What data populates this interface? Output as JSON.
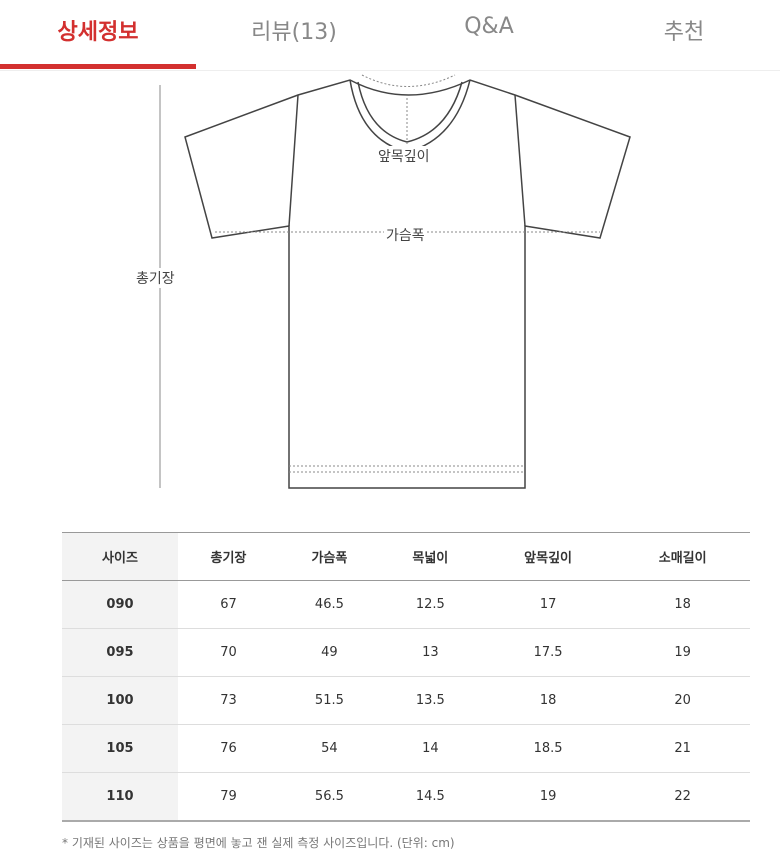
{
  "tabs": [
    {
      "label": "상세정보",
      "active": true
    },
    {
      "label": "리뷰(13)"
    },
    {
      "label": "Q&A"
    },
    {
      "label": "추천"
    }
  ],
  "accent_color": "#d3302f",
  "diagram": {
    "labels": {
      "front_neck_depth": "앞목깊이",
      "chest_width": "가슴폭",
      "total_length": "총기장"
    }
  },
  "size_table": {
    "headers": [
      "사이즈",
      "총기장",
      "가슴폭",
      "목넓이",
      "앞목깊이",
      "소매길이"
    ],
    "rows": [
      [
        "090",
        "67",
        "46.5",
        "12.5",
        "17",
        "18"
      ],
      [
        "095",
        "70",
        "49",
        "13",
        "17.5",
        "19"
      ],
      [
        "100",
        "73",
        "51.5",
        "13.5",
        "18",
        "20"
      ],
      [
        "105",
        "76",
        "54",
        "14",
        "18.5",
        "21"
      ],
      [
        "110",
        "79",
        "56.5",
        "14.5",
        "19",
        "22"
      ]
    ]
  },
  "note": "* 기재된 사이즈는 상품을 평면에 놓고 잰 실제 측정 사이즈입니다. (단위: cm)"
}
